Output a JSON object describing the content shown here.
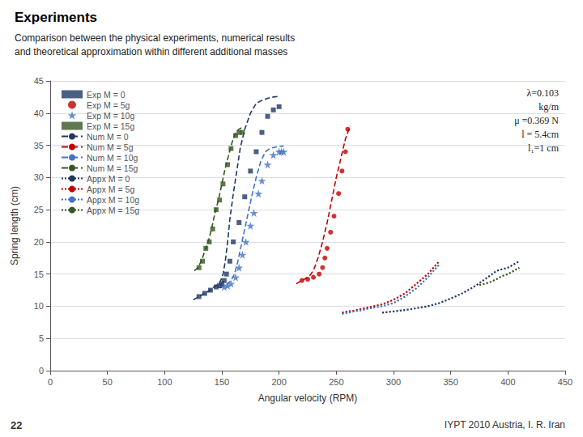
{
  "chart_data": {
    "type": "scatter",
    "title": "Experiments",
    "subtitle": "Comparison between the physical experiments, numerical results\nand theoretical approximation within different additional masses",
    "xlabel": "Angular velocity (RPM)",
    "ylabel": "Spring length (cm)",
    "xlim": [
      0,
      450
    ],
    "ylim": [
      0,
      45
    ],
    "xticks": [
      0,
      50,
      100,
      150,
      200,
      250,
      300,
      350,
      400,
      450
    ],
    "yticks": [
      0,
      5,
      10,
      15,
      20,
      25,
      30,
      35,
      40,
      45
    ],
    "grid": true,
    "legend": "upper left",
    "annotations": [
      "λ=0.103\nkg/m\nμ =0.369 N\nl = 5.4cm\nl₁=1 cm"
    ],
    "footer": [
      "22",
      "IYPT 2010 Austria, I. R. Iran"
    ],
    "series": [
      {
        "name": "Exp M = 0",
        "type": "scatter",
        "marker": "square",
        "color": "#1f3864",
        "x": [
          130,
          135,
          140,
          145,
          148,
          150,
          152,
          154,
          157,
          160,
          165,
          170,
          175,
          180,
          185,
          190,
          195,
          200
        ],
        "values": [
          11.5,
          12.0,
          12.5,
          13.0,
          13.2,
          13.5,
          14.0,
          15.0,
          17.0,
          20.0,
          23.0,
          27.0,
          31.0,
          34.0,
          37.0,
          39.5,
          40.5,
          41.0
        ]
      },
      {
        "name": "Exp M = 5g",
        "type": "scatter",
        "marker": "circle",
        "color": "#c00000",
        "x": [
          220,
          225,
          230,
          235,
          238,
          240,
          242,
          245,
          248,
          252,
          255,
          258,
          260
        ],
        "values": [
          14.0,
          14.2,
          14.5,
          15.0,
          16.0,
          17.5,
          19.0,
          21.5,
          24.0,
          27.5,
          31.0,
          34.0,
          37.5
        ]
      },
      {
        "name": "Exp M = 10g",
        "type": "scatter",
        "marker": "star",
        "color": "#4472c4",
        "x": [
          152,
          155,
          158,
          162,
          165,
          168,
          171,
          175,
          178,
          182,
          185,
          190,
          195,
          200,
          202,
          204
        ],
        "values": [
          13.0,
          13.2,
          13.5,
          14.5,
          16.0,
          18.0,
          20.0,
          22.5,
          24.5,
          27.5,
          29.5,
          32.0,
          33.5,
          34.0,
          34.0,
          34.0
        ]
      },
      {
        "name": "Exp M = 15g",
        "type": "scatter",
        "marker": "square",
        "color": "#375623",
        "x": [
          130,
          133,
          136,
          139,
          142,
          145,
          148,
          151,
          155,
          158,
          162,
          165,
          168
        ],
        "values": [
          16.0,
          17.0,
          19.0,
          20.0,
          22.0,
          25.0,
          26.5,
          29.0,
          32.0,
          34.5,
          36.5,
          37.0,
          37.0
        ]
      },
      {
        "name": "Num M = 0",
        "type": "line",
        "line_style": "dashed",
        "color": "#1f3864",
        "x": [
          125,
          130,
          135,
          140,
          143,
          145,
          147,
          149,
          151,
          153,
          155,
          157,
          160,
          163,
          166,
          170,
          175,
          180,
          185,
          190,
          195,
          200
        ],
        "values": [
          11.0,
          11.5,
          12.0,
          12.5,
          13.0,
          13.2,
          13.5,
          14.0,
          15.0,
          17.0,
          20.0,
          23.5,
          27.5,
          31.0,
          34.5,
          37.5,
          40.0,
          41.5,
          42.0,
          42.3,
          42.5,
          42.6
        ]
      },
      {
        "name": "Num M = 5g",
        "type": "line",
        "line_style": "dashed",
        "color": "#c00000",
        "x": [
          215,
          220,
          223,
          225,
          228,
          231,
          234,
          238,
          242,
          246,
          250,
          254,
          258,
          262
        ],
        "values": [
          13.5,
          14.0,
          14.3,
          14.5,
          15.0,
          16.0,
          17.5,
          20.0,
          23.0,
          26.5,
          30.0,
          33.0,
          36.0,
          38.0
        ]
      },
      {
        "name": "Num M = 10g",
        "type": "line",
        "line_style": "dashed",
        "color": "#4472c4",
        "x": [
          148,
          152,
          155,
          158,
          161,
          164,
          167,
          170,
          173,
          176,
          180,
          184,
          188,
          192,
          196,
          200,
          204
        ],
        "values": [
          12.8,
          13.2,
          13.5,
          14.0,
          15.0,
          17.0,
          19.5,
          22.0,
          24.5,
          27.0,
          30.0,
          32.5,
          34.0,
          34.5,
          34.7,
          34.8,
          34.9
        ]
      },
      {
        "name": "Num M = 15g",
        "type": "line",
        "line_style": "dashed",
        "color": "#375623",
        "x": [
          126,
          129,
          132,
          135,
          138,
          141,
          144,
          147,
          150,
          153,
          156,
          159,
          162,
          165,
          168
        ],
        "values": [
          15.5,
          16.0,
          17.0,
          18.5,
          20.0,
          22.0,
          24.5,
          26.5,
          29.0,
          31.5,
          33.5,
          35.5,
          37.0,
          37.5,
          37.8
        ]
      },
      {
        "name": "Appx M = 0",
        "type": "line",
        "line_style": "dotted",
        "color": "#1f3864",
        "x": [
          290,
          300,
          310,
          320,
          330,
          340,
          350,
          360,
          370,
          380,
          390,
          400,
          410
        ],
        "values": [
          9.0,
          9.2,
          9.4,
          9.7,
          10.0,
          10.5,
          11.2,
          12.0,
          13.0,
          14.2,
          15.5,
          16.0,
          17.0
        ]
      },
      {
        "name": "Appx M = 5g",
        "type": "line",
        "line_style": "dotted",
        "color": "#c00000",
        "x": [
          255,
          260,
          265,
          270,
          275,
          280,
          290,
          300,
          310,
          320,
          330,
          340
        ],
        "values": [
          9.0,
          9.2,
          9.3,
          9.5,
          9.7,
          9.9,
          10.3,
          11.0,
          12.0,
          13.5,
          15.0,
          17.0
        ]
      },
      {
        "name": "Appx M = 10g",
        "type": "line",
        "line_style": "dotted",
        "color": "#4472c4",
        "x": [
          255,
          260,
          265,
          270,
          275,
          280,
          290,
          300,
          310,
          320,
          330,
          340
        ],
        "values": [
          8.8,
          9.0,
          9.2,
          9.3,
          9.5,
          9.7,
          10.0,
          10.5,
          11.5,
          12.8,
          14.5,
          16.5
        ]
      },
      {
        "name": "Appx M = 15g",
        "type": "line",
        "line_style": "dotted",
        "color": "#375623",
        "x": [
          375,
          380,
          385,
          390,
          395,
          400,
          405,
          410
        ],
        "values": [
          13.3,
          13.5,
          13.8,
          14.2,
          14.7,
          15.0,
          15.5,
          16.0
        ]
      }
    ]
  }
}
